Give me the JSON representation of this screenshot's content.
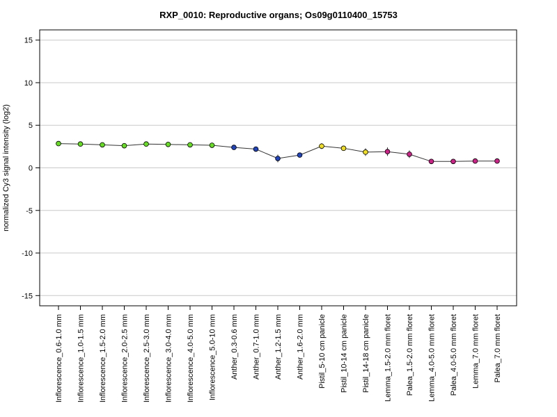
{
  "chart_data": {
    "type": "line",
    "title": "RXP_0010: Reproductive organs; Os09g0110400_15753",
    "xlabel": "",
    "ylabel": "normalized Cy3 signal intensity (log2)",
    "ylim": [
      -16.2,
      16.2
    ],
    "yticks": [
      -15,
      -10,
      -5,
      0,
      5,
      10,
      15
    ],
    "ytick_labels": [
      "-15",
      "-10",
      "-5",
      "0",
      "5",
      "10",
      "15"
    ],
    "grid": true,
    "categories": [
      "Inflorescence_0.6-1.0 mm",
      "Inflorescence_1.0-1.5 mm",
      "Inflorescence_1.5-2.0 mm",
      "Inflorescence_2.0-2.5 mm",
      "Inflorescence_2.5-3.0 mm",
      "Inflorescence_3.0-4.0 mm",
      "Inflorescence_4.0-5.0 mm",
      "Inflorescence_5.0-10 mm",
      "Anther_0.3-0.6 mm",
      "Anther_0.7-1.0 mm",
      "Anther_1.2-1.5 mm",
      "Anther_1.6-2.0 mm",
      "Pistil_5-10 cm panicle",
      "Pistil_10-14 cm panicle",
      "Pistil_14-18 cm panicle",
      "Lemma_1.5-2.0 mm floret",
      "Palea_1.5-2.0 mm floret",
      "Lemma_4.0-5.0 mm floret",
      "Palea_4.0-5.0 mm floret",
      "Lemma_7.0 mm floret",
      "Palea_7.0 mm floret"
    ],
    "series": [
      {
        "values": [
          2.85,
          2.8,
          2.7,
          2.6,
          2.8,
          2.75,
          2.7,
          2.65,
          2.4,
          2.2,
          1.1,
          1.5,
          2.55,
          2.3,
          1.85,
          1.9,
          1.6,
          0.75,
          0.75,
          0.8,
          0.8
        ],
        "error": [
          0.1,
          0.1,
          0.1,
          0.1,
          0.1,
          0.1,
          0.1,
          0.1,
          0.15,
          0.15,
          0.45,
          0.15,
          0.35,
          0.2,
          0.45,
          0.5,
          0.45,
          0.1,
          0.1,
          0.1,
          0.1
        ],
        "point_colors": [
          "#66dd22",
          "#66dd22",
          "#66dd22",
          "#66dd22",
          "#66dd22",
          "#66dd22",
          "#66dd22",
          "#66dd22",
          "#2244bb",
          "#2244bb",
          "#2244bb",
          "#2244bb",
          "#eedd22",
          "#eedd22",
          "#eedd22",
          "#cc2288",
          "#cc2288",
          "#cc2288",
          "#cc2288",
          "#cc2288",
          "#cc2288"
        ]
      }
    ]
  }
}
